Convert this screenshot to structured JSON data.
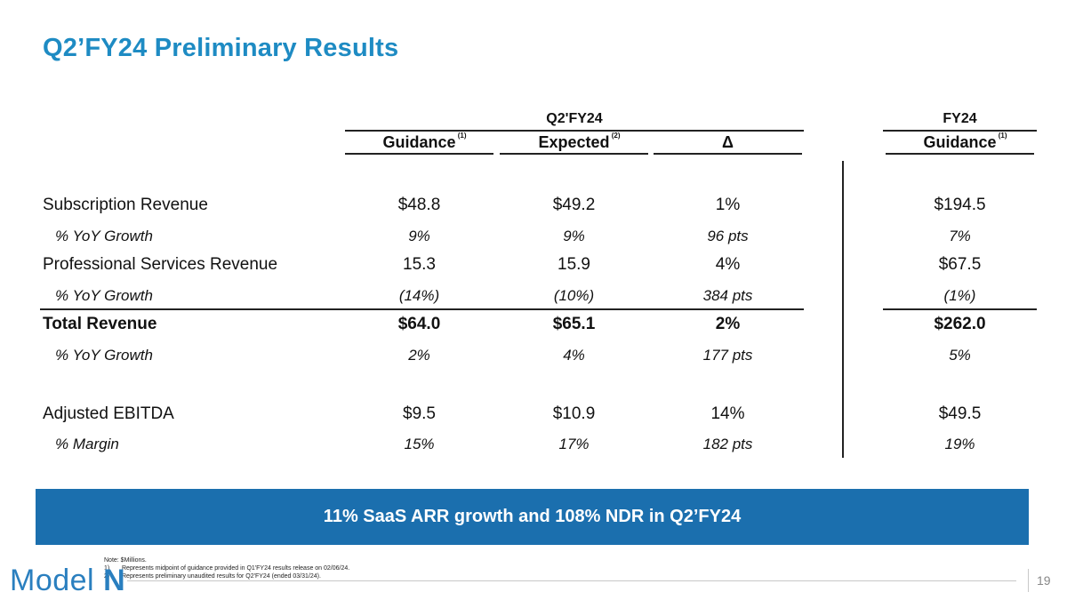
{
  "title": "Q2’FY24 Preliminary Results",
  "headers": {
    "q2_group": "Q2'FY24",
    "fy_group": "FY24",
    "guidance": "Guidance",
    "guidance_sup": "(1)",
    "expected": "Expected",
    "expected_sup": "(2)",
    "delta": "Δ",
    "fy_guidance": "Guidance",
    "fy_guidance_sup": "(1)"
  },
  "rows": [
    {
      "label": "Subscription Revenue",
      "guidance": "$48.8",
      "expected": "$49.2",
      "delta": "1%",
      "fy": "$194.5"
    },
    {
      "label": "% YoY Growth",
      "guidance": "9%",
      "expected": "9%",
      "delta": "96 pts",
      "fy": "7%"
    },
    {
      "label": "Professional Services Revenue",
      "guidance": "15.3",
      "expected": "15.9",
      "delta": "4%",
      "fy": "$67.5"
    },
    {
      "label": "% YoY Growth",
      "guidance": "(14%)",
      "expected": "(10%)",
      "delta": "384 pts",
      "fy": "(1%)"
    },
    {
      "label": "Total Revenue",
      "guidance": "$64.0",
      "expected": "$65.1",
      "delta": "2%",
      "fy": "$262.0"
    },
    {
      "label": "% YoY Growth",
      "guidance": "2%",
      "expected": "4%",
      "delta": "177 pts",
      "fy": "5%"
    },
    {
      "label": "Adjusted EBITDA",
      "guidance": "$9.5",
      "expected": "$10.9",
      "delta": "14%",
      "fy": "$49.5"
    },
    {
      "label": "% Margin",
      "guidance": "15%",
      "expected": "17%",
      "delta": "182 pts",
      "fy": "19%"
    }
  ],
  "banner": "11% SaaS ARR growth and 108% NDR in Q2’FY24",
  "notes": {
    "note": "Note: $Millions.",
    "n1_key": "1)",
    "n1": "Represents midpoint of guidance provided in Q1'FY24 results release on 02/06/24.",
    "n2_key": "2)",
    "n2": "Represents preliminary unaudited results for Q2'FY24 (ended 03/31/24)."
  },
  "logo": {
    "text": "Model",
    "mark": "N"
  },
  "page_number": "19",
  "colors": {
    "title": "#1e8bc3",
    "banner": "#1b6fae",
    "logo": "#2a7fbf"
  }
}
